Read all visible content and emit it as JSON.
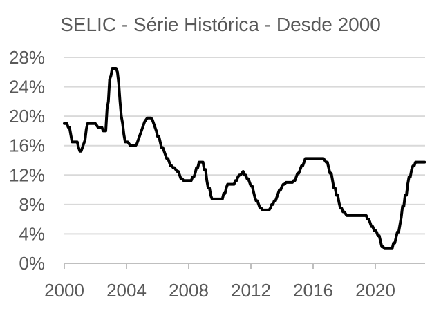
{
  "title": "SELIC - Série Histórica - Desde 2000",
  "colors": {
    "text": "#595959",
    "gridline": "#d9d9d9",
    "axis": "#bfbfbf",
    "tick": "#bfbfbf",
    "series": "#000000",
    "background": "#ffffff"
  },
  "chart_data": {
    "type": "line",
    "title": "SELIC - Série Histórica - Desde 2000",
    "xlabel": "",
    "ylabel": "",
    "ylim": [
      0,
      28
    ],
    "y_tick_step": 4,
    "y_tick_labels": [
      "0%",
      "4%",
      "8%",
      "12%",
      "16%",
      "20%",
      "24%",
      "28%"
    ],
    "x_tick_labels": [
      "2000",
      "2004",
      "2008",
      "2012",
      "2016",
      "2020"
    ],
    "x_tick_step_years": 4,
    "x_start_year": 2000,
    "x_step_months": 1,
    "grid": "horizontal-only",
    "legend": false,
    "series": [
      {
        "name": "SELIC",
        "unit": "%",
        "values": [
          19,
          19,
          19,
          18.5,
          18.5,
          17.5,
          16.5,
          16.5,
          16.5,
          16.5,
          16.5,
          15.75,
          15.25,
          15.25,
          15.75,
          16.25,
          16.75,
          18.25,
          19,
          19,
          19,
          19,
          19,
          19,
          19,
          18.75,
          18.5,
          18.5,
          18.5,
          18.5,
          18,
          18,
          18,
          21,
          22,
          25,
          25.5,
          26.5,
          26.5,
          26.5,
          26.5,
          26,
          24.5,
          22,
          20,
          19,
          17.5,
          16.5,
          16.5,
          16.5,
          16.25,
          16,
          16,
          16,
          16,
          16,
          16.25,
          16.75,
          17.25,
          17.75,
          18.25,
          18.75,
          19.25,
          19.5,
          19.75,
          19.75,
          19.75,
          19.75,
          19.5,
          19,
          18.5,
          18,
          17.25,
          17.25,
          16.5,
          15.75,
          15.75,
          15.25,
          14.75,
          14.25,
          14.25,
          13.75,
          13.25,
          13.25,
          13,
          13,
          12.75,
          12.5,
          12.5,
          12,
          11.5,
          11.5,
          11.25,
          11.25,
          11.25,
          11.25,
          11.25,
          11.25,
          11.25,
          11.75,
          11.75,
          12.25,
          13,
          13,
          13.75,
          13.75,
          13.75,
          13.75,
          12.75,
          12.75,
          11.25,
          10.25,
          10.25,
          9.25,
          8.75,
          8.75,
          8.75,
          8.75,
          8.75,
          8.75,
          8.75,
          8.75,
          8.75,
          9.5,
          9.5,
          10.25,
          10.75,
          10.75,
          10.75,
          10.75,
          10.75,
          10.75,
          11.25,
          11.25,
          11.75,
          12,
          12,
          12.25,
          12.5,
          12,
          12,
          11.5,
          11.5,
          11,
          10.5,
          10.5,
          9.75,
          9,
          8.5,
          8.5,
          8,
          7.5,
          7.5,
          7.25,
          7.25,
          7.25,
          7.25,
          7.25,
          7.25,
          7.5,
          8,
          8,
          8.5,
          8.5,
          9,
          9.5,
          10,
          10,
          10.5,
          10.75,
          10.75,
          11,
          11,
          11,
          11,
          11,
          11,
          11.25,
          11.25,
          11.75,
          12.25,
          12.25,
          12.75,
          13.25,
          13.25,
          13.75,
          14.25,
          14.25,
          14.25,
          14.25,
          14.25,
          14.25,
          14.25,
          14.25,
          14.25,
          14.25,
          14.25,
          14.25,
          14.25,
          14.25,
          14.25,
          14,
          13.75,
          13.75,
          13,
          12.25,
          12.25,
          11.25,
          10.25,
          10.25,
          9.25,
          9.25,
          8.25,
          7.5,
          7.5,
          7,
          7,
          6.75,
          6.5,
          6.5,
          6.5,
          6.5,
          6.5,
          6.5,
          6.5,
          6.5,
          6.5,
          6.5,
          6.5,
          6.5,
          6.5,
          6.5,
          6.5,
          6.5,
          6,
          6,
          5.5,
          5,
          5,
          4.5,
          4.5,
          4.25,
          3.75,
          3.75,
          3,
          2.25,
          2.25,
          2,
          2,
          2,
          2,
          2,
          2,
          2,
          2.75,
          2.75,
          3.5,
          4.25,
          4.25,
          5.25,
          6.25,
          7.75,
          7.75,
          9.25,
          9.25,
          10.75,
          11.75,
          11.75,
          12.75,
          13.25,
          13.25,
          13.75,
          13.75,
          13.75,
          13.75,
          13.75,
          13.75,
          13.75,
          13.75
        ]
      }
    ]
  }
}
